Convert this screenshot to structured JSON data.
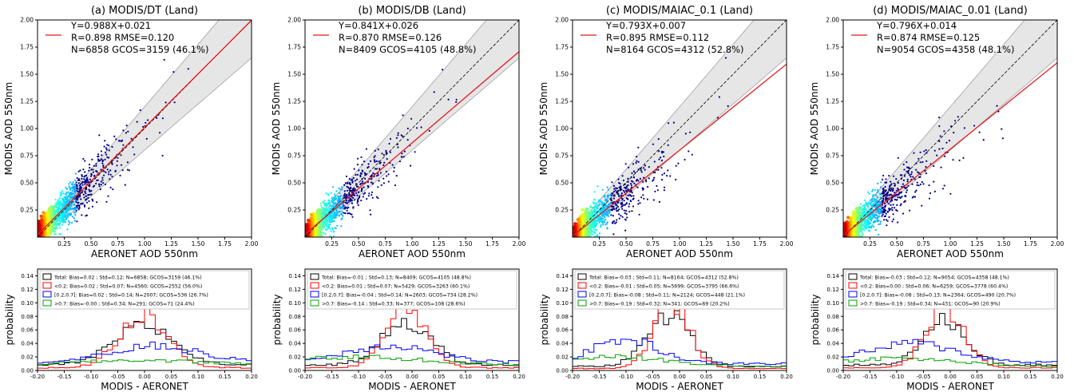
{
  "chart_data": [
    {
      "type": "scatter",
      "title": "(a) MODIS/DT (Land)",
      "xlabel": "AERONET AOD 550nm",
      "ylabel": "MODIS AOD 550nm",
      "xlim": [
        0,
        2.0
      ],
      "ylim": [
        0,
        2.0
      ],
      "x_ticks": [
        "0.25",
        "0.50",
        "0.75",
        "1.00",
        "1.25",
        "1.50",
        "1.75",
        "2.00"
      ],
      "y_ticks": [
        "0.25",
        "0.50",
        "0.75",
        "1.00",
        "1.25",
        "1.50",
        "1.75",
        "2.00"
      ],
      "fit": {
        "slope": 0.988,
        "intercept": 0.021,
        "color": "#e41a1c"
      },
      "legend": [
        "Y=0.988X+0.021",
        "R=0.898  RMSE=0.120",
        "N=6858 GCOS=3159 (46.1%)"
      ],
      "legend_position": "top-left",
      "n": 6858,
      "r": 0.898,
      "rmse": 0.12,
      "envelope": "1:1 line with shaded expected-error envelope",
      "colormap": "jet density"
    },
    {
      "type": "scatter",
      "title": "(b) MODIS/DB (Land)",
      "xlabel": "AERONET AOD 550nm",
      "ylabel": "MODIS AOD 550nm",
      "xlim": [
        0,
        2.0
      ],
      "ylim": [
        0,
        2.0
      ],
      "x_ticks": [
        "0.25",
        "0.50",
        "0.75",
        "1.00",
        "1.25",
        "1.50",
        "1.75",
        "2.00"
      ],
      "y_ticks": [
        "0.25",
        "0.50",
        "0.75",
        "1.00",
        "1.25",
        "1.50",
        "1.75",
        "2.00"
      ],
      "fit": {
        "slope": 0.841,
        "intercept": 0.026,
        "color": "#e41a1c"
      },
      "legend": [
        "Y=0.841X+0.026",
        "R=0.870  RMSE=0.126",
        "N=8409 GCOS=4105 (48.8%)"
      ],
      "legend_position": "top-left",
      "n": 8409,
      "r": 0.87,
      "rmse": 0.126
    },
    {
      "type": "scatter",
      "title": "(c) MODIS/MAIAC_0.1 (Land)",
      "xlabel": "AERONET AOD 550nm",
      "ylabel": "MODIS AOD 550nm",
      "xlim": [
        0,
        2.0
      ],
      "ylim": [
        0,
        2.0
      ],
      "x_ticks": [
        "0.25",
        "0.50",
        "0.75",
        "1.00",
        "1.25",
        "1.50",
        "1.75",
        "2.00"
      ],
      "y_ticks": [
        "0.25",
        "0.50",
        "0.75",
        "1.00",
        "1.25",
        "1.50",
        "1.75",
        "2.00"
      ],
      "fit": {
        "slope": 0.793,
        "intercept": 0.007,
        "color": "#e41a1c"
      },
      "legend": [
        "Y=0.793X+0.007",
        "R=0.895  RMSE=0.112",
        "N=8164 GCOS=4312 (52.8%)"
      ],
      "legend_position": "top-left",
      "n": 8164,
      "r": 0.895,
      "rmse": 0.112
    },
    {
      "type": "scatter",
      "title": "(d) MODIS/MAIAC_0.01 (Land)",
      "xlabel": "AERONET AOD 550nm",
      "ylabel": "MODIS AOD 550nm",
      "xlim": [
        0,
        2.0
      ],
      "ylim": [
        0,
        2.0
      ],
      "x_ticks": [
        "0.25",
        "0.50",
        "0.75",
        "1.00",
        "1.25",
        "1.50",
        "1.75",
        "2.00"
      ],
      "y_ticks": [
        "0.25",
        "0.50",
        "0.75",
        "1.00",
        "1.25",
        "1.50",
        "1.75",
        "2.00"
      ],
      "fit": {
        "slope": 0.796,
        "intercept": 0.014,
        "color": "#e41a1c"
      },
      "legend": [
        "Y=0.796X+0.014",
        "R=0.874  RMSE=0.125",
        "N=9054 GCOS=4358 (48.1%)"
      ],
      "legend_position": "top-left",
      "n": 9054,
      "r": 0.874,
      "rmse": 0.125
    },
    {
      "type": "line",
      "subtype": "step-histogram",
      "xlabel": "MODIS - AERONET",
      "ylabel": "probability",
      "xlim": [
        -0.2,
        0.2
      ],
      "ylim": [
        0,
        0.15
      ],
      "x_ticks": [
        "-0.20",
        "-0.15",
        "-0.10",
        "-0.05",
        "0.00",
        "0.05",
        "0.10",
        "0.15",
        "0.20"
      ],
      "y_ticks": [
        "0.00",
        "0.02",
        "0.04",
        "0.06",
        "0.08",
        "0.10",
        "0.12",
        "0.14"
      ],
      "legend_position": "top-left",
      "series": [
        {
          "name": "Total: Bias=0.02 ; Std=0.12; N=6858; GCOS=3159 (46.1%)",
          "color": "#000000",
          "peak_x": 0.0,
          "peak": 0.066,
          "sd": 0.055,
          "floor": 0.008
        },
        {
          "name": "<0.2: Bias=0.02 ; Std=0.07; N=4560; GCOS=2552 (56.0%)",
          "color": "#ff0000",
          "peak_x": 0.0,
          "peak": 0.083,
          "sd": 0.045,
          "floor": 0.004
        },
        {
          "name": "[0.2,0.7]: Bias=0.02 ; Std=0.14; N=2007; GCOS=536 (26.7%)",
          "color": "#0000ff",
          "peak_x": 0.02,
          "peak": 0.036,
          "sd": 0.08,
          "floor": 0.012
        },
        {
          "name": ">0.7: Bias=-0.00 ; Std=0.34; N=291; GCOS=71 (24.4%)",
          "color": "#00a000",
          "peak_x": 0.0,
          "peak": 0.015,
          "sd": 0.12,
          "floor": 0.008
        }
      ]
    },
    {
      "type": "line",
      "subtype": "step-histogram",
      "xlabel": "MODIS - AERONET",
      "ylabel": "probability",
      "xlim": [
        -0.2,
        0.2
      ],
      "ylim": [
        0,
        0.15
      ],
      "x_ticks": [
        "-0.20",
        "-0.15",
        "-0.10",
        "-0.05",
        "0.00",
        "0.05",
        "0.10",
        "0.15",
        "0.20"
      ],
      "y_ticks": [
        "0.00",
        "0.02",
        "0.04",
        "0.06",
        "0.08",
        "0.10",
        "0.12",
        "0.14"
      ],
      "legend_position": "top-left",
      "series": [
        {
          "name": "Total: Bias=-0.01 ; Std=0.13; N=8409; GCOS=4105 (48.8%)",
          "color": "#000000",
          "peak_x": -0.01,
          "peak": 0.073,
          "sd": 0.045,
          "floor": 0.008
        },
        {
          "name": "<0.2: Bias=0.01 ; Std=0.07; N=5429; GCOS=3263 (60.1%)",
          "color": "#ff0000",
          "peak_x": -0.01,
          "peak": 0.092,
          "sd": 0.038,
          "floor": 0.004
        },
        {
          "name": "[0.2,0.7]: Bias=-0.04 ; Std=0.14; N=2603; GCOS=734 (28.2%)",
          "color": "#0000ff",
          "peak_x": -0.04,
          "peak": 0.037,
          "sd": 0.08,
          "floor": 0.012
        },
        {
          "name": ">0.7: Bias=-0.14 ; Std=0.33; N=377; GCOS=108 (28.6%)",
          "color": "#00a000",
          "peak_x": -0.1,
          "peak": 0.02,
          "sd": 0.12,
          "floor": 0.008
        }
      ]
    },
    {
      "type": "line",
      "subtype": "step-histogram",
      "xlabel": "MODIS - AERONET",
      "ylabel": "probability",
      "xlim": [
        -0.2,
        0.2
      ],
      "ylim": [
        0,
        0.15
      ],
      "x_ticks": [
        "-0.20",
        "-0.15",
        "-0.10",
        "-0.05",
        "0.00",
        "0.05",
        "0.10",
        "0.15",
        "0.20"
      ],
      "y_ticks": [
        "0.00",
        "0.02",
        "0.04",
        "0.06",
        "0.08",
        "0.10",
        "0.12",
        "0.14"
      ],
      "legend_position": "top-left",
      "series": [
        {
          "name": "Total: Bias=-0.03 ; Std=0.11; N=8164; GCOS=4312 (52.8%)",
          "color": "#000000",
          "peak_x": -0.02,
          "peak": 0.081,
          "sd": 0.04,
          "floor": 0.006
        },
        {
          "name": "<0.2: Bias=-0.01 ; Std=0.05; N=5699; GCOS=3795 (66.6%)",
          "color": "#ff0000",
          "peak_x": -0.015,
          "peak": 0.103,
          "sd": 0.033,
          "floor": 0.003
        },
        {
          "name": "[0.2,0.7]: Bias=-0.08 ; Std=0.11; N=2124; GCOS=448 (21.1%)",
          "color": "#0000ff",
          "peak_x": -0.1,
          "peak": 0.046,
          "sd": 0.06,
          "floor": 0.01
        },
        {
          "name": ">0.7: Bias=-0.19 ; Std=0.32; N=341; GCOS=69 (20.2%)",
          "color": "#00a000",
          "peak_x": -0.12,
          "peak": 0.02,
          "sd": 0.1,
          "floor": 0.006
        }
      ]
    },
    {
      "type": "line",
      "subtype": "step-histogram",
      "xlabel": "MODIS - AERONET",
      "ylabel": "probability",
      "xlim": [
        -0.2,
        0.2
      ],
      "ylim": [
        0,
        0.15
      ],
      "x_ticks": [
        "-0.20",
        "-0.15",
        "-0.10",
        "-0.05",
        "0.00",
        "0.05",
        "0.10",
        "0.15",
        "0.20"
      ],
      "y_ticks": [
        "0.00",
        "0.02",
        "0.04",
        "0.06",
        "0.08",
        "0.10",
        "0.12",
        "0.14"
      ],
      "legend_position": "top-left",
      "series": [
        {
          "name": "Total: Bias=-0.03 ; Std=0.12; N=9054; GCOS=4358 (48.1%)",
          "color": "#000000",
          "peak_x": -0.01,
          "peak": 0.073,
          "sd": 0.04,
          "floor": 0.008
        },
        {
          "name": "<0.2: Bias=0.00 ; Std=0.06; N=6259; GCOS=3778 (60.4%)",
          "color": "#ff0000",
          "peak_x": -0.01,
          "peak": 0.094,
          "sd": 0.035,
          "floor": 0.004
        },
        {
          "name": "[0.2,0.7]: Bias=-0.08 ; Std=0.13; N=2364; GCOS=490 (20.7%)",
          "color": "#0000ff",
          "peak_x": -0.07,
          "peak": 0.04,
          "sd": 0.08,
          "floor": 0.012
        },
        {
          "name": ">0.7: Bias=-0.19 ; Std=0.34; N=431; GCOS=90 (20.9%)",
          "color": "#00a000",
          "peak_x": -0.1,
          "peak": 0.018,
          "sd": 0.11,
          "floor": 0.006
        }
      ]
    }
  ]
}
